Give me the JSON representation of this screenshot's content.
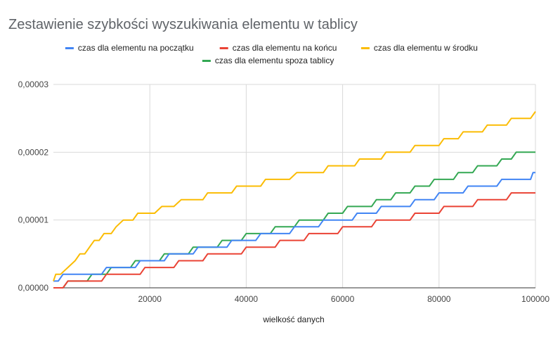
{
  "chart_data": {
    "type": "line",
    "title": "Zestawienie szybkości wyszukiwania elementu w tablicy",
    "xlabel": "wielkość danych",
    "ylabel": "",
    "xlim": [
      0,
      100000
    ],
    "ylim": [
      0,
      3e-05
    ],
    "xticks": [
      20000,
      40000,
      60000,
      80000,
      100000
    ],
    "yticks": [
      0,
      1e-05,
      2e-05,
      3e-05
    ],
    "xtick_labels": [
      "20000",
      "40000",
      "60000",
      "80000",
      "100000"
    ],
    "ytick_labels": [
      "0,00000",
      "0,00001",
      "0,00002",
      "0,00003"
    ],
    "grid": true,
    "legend_position": "top",
    "series": [
      {
        "name": "czas dla elementu na początku",
        "color": "#4285f4",
        "points": [
          [
            0,
            1e-06
          ],
          [
            1000,
            1e-06
          ],
          [
            2000,
            2e-06
          ],
          [
            10000,
            2e-06
          ],
          [
            11000,
            3e-06
          ],
          [
            17000,
            3e-06
          ],
          [
            18000,
            4e-06
          ],
          [
            23000,
            4e-06
          ],
          [
            24000,
            5e-06
          ],
          [
            29000,
            5e-06
          ],
          [
            30000,
            6e-06
          ],
          [
            36000,
            6e-06
          ],
          [
            37000,
            7e-06
          ],
          [
            42000,
            7e-06
          ],
          [
            43000,
            8e-06
          ],
          [
            49000,
            8e-06
          ],
          [
            50000,
            9e-06
          ],
          [
            55000,
            9e-06
          ],
          [
            56000,
            1e-05
          ],
          [
            62000,
            1e-05
          ],
          [
            63000,
            1.1e-05
          ],
          [
            67000,
            1.1e-05
          ],
          [
            68000,
            1.2e-05
          ],
          [
            74000,
            1.2e-05
          ],
          [
            75000,
            1.3e-05
          ],
          [
            79000,
            1.3e-05
          ],
          [
            80000,
            1.4e-05
          ],
          [
            85000,
            1.4e-05
          ],
          [
            86000,
            1.5e-05
          ],
          [
            92000,
            1.5e-05
          ],
          [
            93000,
            1.6e-05
          ],
          [
            99000,
            1.6e-05
          ],
          [
            99500,
            1.7e-05
          ],
          [
            100000,
            1.7e-05
          ]
        ]
      },
      {
        "name": "czas dla elementu na końcu",
        "color": "#ea4335",
        "points": [
          [
            0,
            0
          ],
          [
            2000,
            0
          ],
          [
            3000,
            1e-06
          ],
          [
            10000,
            1e-06
          ],
          [
            11000,
            2e-06
          ],
          [
            18000,
            2e-06
          ],
          [
            19000,
            3e-06
          ],
          [
            25000,
            3e-06
          ],
          [
            26000,
            4e-06
          ],
          [
            31000,
            4e-06
          ],
          [
            32000,
            5e-06
          ],
          [
            39000,
            5e-06
          ],
          [
            40000,
            6e-06
          ],
          [
            46000,
            6e-06
          ],
          [
            47000,
            7e-06
          ],
          [
            52000,
            7e-06
          ],
          [
            53000,
            8e-06
          ],
          [
            59000,
            8e-06
          ],
          [
            60000,
            9e-06
          ],
          [
            66000,
            9e-06
          ],
          [
            67000,
            1e-05
          ],
          [
            74000,
            1e-05
          ],
          [
            75000,
            1.1e-05
          ],
          [
            80000,
            1.1e-05
          ],
          [
            81000,
            1.2e-05
          ],
          [
            87000,
            1.2e-05
          ],
          [
            88000,
            1.3e-05
          ],
          [
            94000,
            1.3e-05
          ],
          [
            95000,
            1.4e-05
          ],
          [
            100000,
            1.4e-05
          ]
        ]
      },
      {
        "name": "czas dla elementu w środku",
        "color": "#fbbc04",
        "points": [
          [
            0,
            1e-06
          ],
          [
            500,
            2e-06
          ],
          [
            1500,
            2e-06
          ],
          [
            3000,
            3e-06
          ],
          [
            4500,
            4e-06
          ],
          [
            5500,
            5e-06
          ],
          [
            6500,
            5e-06
          ],
          [
            7500,
            6e-06
          ],
          [
            8500,
            7e-06
          ],
          [
            9500,
            7e-06
          ],
          [
            10500,
            8e-06
          ],
          [
            12000,
            8e-06
          ],
          [
            13000,
            9e-06
          ],
          [
            14500,
            1e-05
          ],
          [
            16500,
            1e-05
          ],
          [
            17500,
            1.1e-05
          ],
          [
            21000,
            1.1e-05
          ],
          [
            22500,
            1.2e-05
          ],
          [
            25000,
            1.2e-05
          ],
          [
            26500,
            1.3e-05
          ],
          [
            31000,
            1.3e-05
          ],
          [
            32000,
            1.4e-05
          ],
          [
            37000,
            1.4e-05
          ],
          [
            38000,
            1.5e-05
          ],
          [
            43000,
            1.5e-05
          ],
          [
            44000,
            1.6e-05
          ],
          [
            49000,
            1.6e-05
          ],
          [
            50500,
            1.7e-05
          ],
          [
            56000,
            1.7e-05
          ],
          [
            57000,
            1.8e-05
          ],
          [
            62500,
            1.8e-05
          ],
          [
            63500,
            1.9e-05
          ],
          [
            68000,
            1.9e-05
          ],
          [
            69000,
            2e-05
          ],
          [
            74000,
            2e-05
          ],
          [
            75000,
            2.1e-05
          ],
          [
            80000,
            2.1e-05
          ],
          [
            81000,
            2.2e-05
          ],
          [
            84000,
            2.2e-05
          ],
          [
            85000,
            2.3e-05
          ],
          [
            89000,
            2.3e-05
          ],
          [
            90000,
            2.4e-05
          ],
          [
            94000,
            2.4e-05
          ],
          [
            95000,
            2.5e-05
          ],
          [
            99000,
            2.5e-05
          ],
          [
            100000,
            2.6e-05
          ]
        ]
      },
      {
        "name": "czas dla elementu spoza tablicy",
        "color": "#34a853",
        "points": [
          [
            0,
            0
          ],
          [
            2000,
            0
          ],
          [
            3000,
            1e-06
          ],
          [
            7000,
            1e-06
          ],
          [
            8000,
            2e-06
          ],
          [
            11000,
            2e-06
          ],
          [
            12000,
            3e-06
          ],
          [
            16000,
            3e-06
          ],
          [
            17000,
            4e-06
          ],
          [
            22000,
            4e-06
          ],
          [
            23000,
            5e-06
          ],
          [
            28000,
            5e-06
          ],
          [
            29000,
            6e-06
          ],
          [
            34000,
            6e-06
          ],
          [
            35000,
            7e-06
          ],
          [
            39000,
            7e-06
          ],
          [
            40000,
            8e-06
          ],
          [
            45000,
            8e-06
          ],
          [
            46000,
            9e-06
          ],
          [
            50000,
            9e-06
          ],
          [
            51000,
            1e-05
          ],
          [
            56000,
            1e-05
          ],
          [
            57000,
            1.1e-05
          ],
          [
            60000,
            1.1e-05
          ],
          [
            61000,
            1.2e-05
          ],
          [
            66000,
            1.2e-05
          ],
          [
            67000,
            1.3e-05
          ],
          [
            70000,
            1.3e-05
          ],
          [
            71000,
            1.4e-05
          ],
          [
            74000,
            1.4e-05
          ],
          [
            75000,
            1.5e-05
          ],
          [
            78000,
            1.5e-05
          ],
          [
            79000,
            1.6e-05
          ],
          [
            83000,
            1.6e-05
          ],
          [
            84000,
            1.7e-05
          ],
          [
            87000,
            1.7e-05
          ],
          [
            88000,
            1.8e-05
          ],
          [
            92000,
            1.8e-05
          ],
          [
            93000,
            1.9e-05
          ],
          [
            95000,
            1.9e-05
          ],
          [
            96000,
            2e-05
          ],
          [
            100000,
            2e-05
          ]
        ]
      }
    ]
  }
}
